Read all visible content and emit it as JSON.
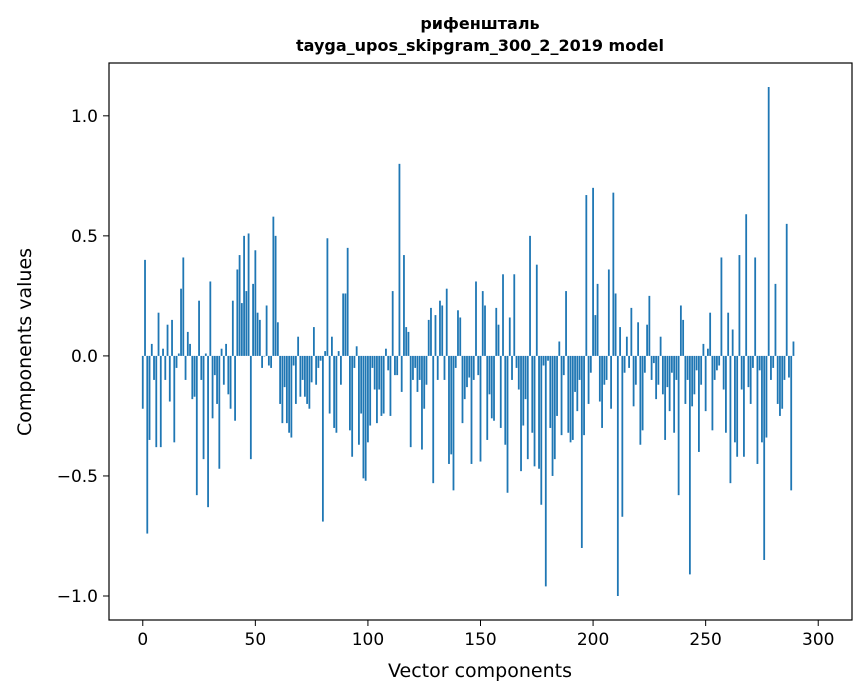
{
  "chart_data": {
    "type": "bar",
    "title": "рифеншталь",
    "subtitle": "tayga_upos_skipgram_300_2_2019 model",
    "xlabel": "Vector components",
    "ylabel": "Components values",
    "xlim": [
      -15,
      315
    ],
    "ylim": [
      -1.1,
      1.22
    ],
    "x_ticks": [
      0,
      50,
      100,
      150,
      200,
      250,
      300
    ],
    "x_tick_labels": [
      "0",
      "50",
      "100",
      "150",
      "200",
      "250",
      "300"
    ],
    "y_ticks": [
      -1.0,
      -0.5,
      0.0,
      0.5,
      1.0
    ],
    "y_tick_labels": [
      "−1.0",
      "−0.5",
      "0.0",
      "0.5",
      "1.0"
    ],
    "bar_color": "#1f77b4",
    "grid": false,
    "values": [
      -0.22,
      0.4,
      -0.74,
      -0.35,
      0.05,
      -0.1,
      -0.38,
      0.18,
      -0.38,
      0.03,
      -0.1,
      0.13,
      -0.19,
      0.15,
      -0.36,
      -0.05,
      0.01,
      0.28,
      0.41,
      -0.1,
      0.1,
      0.05,
      -0.18,
      -0.17,
      -0.58,
      0.23,
      -0.1,
      -0.43,
      0.01,
      -0.63,
      0.31,
      -0.26,
      -0.08,
      -0.2,
      -0.47,
      0.03,
      -0.12,
      0.05,
      -0.16,
      -0.22,
      0.23,
      -0.27,
      0.36,
      0.42,
      0.22,
      0.5,
      0.27,
      0.51,
      -0.43,
      0.3,
      0.44,
      0.18,
      0.15,
      -0.05,
      0.0,
      0.21,
      -0.04,
      -0.05,
      0.58,
      0.5,
      0.14,
      -0.2,
      -0.28,
      -0.13,
      -0.28,
      -0.32,
      -0.34,
      -0.04,
      -0.2,
      0.08,
      -0.17,
      -0.1,
      -0.17,
      -0.2,
      -0.22,
      -0.11,
      0.12,
      -0.12,
      -0.05,
      -0.02,
      -0.69,
      0.02,
      0.49,
      -0.24,
      0.08,
      -0.3,
      -0.32,
      0.02,
      -0.12,
      0.26,
      0.26,
      0.45,
      -0.31,
      -0.42,
      -0.05,
      0.04,
      -0.37,
      -0.24,
      -0.51,
      -0.52,
      -0.36,
      -0.29,
      -0.05,
      -0.14,
      -0.28,
      -0.14,
      -0.25,
      -0.24,
      0.03,
      -0.06,
      -0.25,
      0.27,
      -0.08,
      -0.08,
      0.8,
      -0.15,
      0.42,
      0.12,
      0.1,
      -0.38,
      -0.1,
      -0.05,
      -0.15,
      -0.1,
      -0.39,
      -0.22,
      -0.12,
      0.15,
      0.2,
      -0.53,
      0.17,
      -0.1,
      0.23,
      0.21,
      -0.1,
      0.28,
      -0.45,
      -0.41,
      -0.56,
      -0.05,
      0.19,
      0.16,
      -0.28,
      -0.18,
      -0.13,
      -0.09,
      -0.45,
      -0.1,
      0.31,
      -0.08,
      -0.44,
      0.27,
      0.21,
      -0.35,
      -0.16,
      -0.26,
      -0.27,
      0.2,
      0.13,
      -0.3,
      0.34,
      -0.37,
      -0.57,
      0.16,
      -0.1,
      0.34,
      -0.05,
      -0.14,
      -0.48,
      -0.29,
      -0.18,
      -0.43,
      0.5,
      -0.32,
      -0.46,
      0.38,
      -0.47,
      -0.62,
      -0.04,
      -0.96,
      -0.02,
      -0.3,
      -0.5,
      -0.43,
      -0.25,
      0.06,
      -0.33,
      -0.08,
      0.27,
      -0.32,
      -0.36,
      -0.35,
      -0.15,
      -0.23,
      -0.1,
      -0.8,
      -0.33,
      0.67,
      -0.2,
      -0.07,
      0.7,
      0.17,
      0.3,
      -0.19,
      -0.3,
      -0.12,
      -0.1,
      0.36,
      -0.22,
      0.68,
      0.26,
      -1.0,
      0.12,
      -0.67,
      -0.07,
      0.08,
      -0.05,
      0.2,
      -0.21,
      -0.12,
      0.14,
      -0.37,
      -0.31,
      -0.07,
      0.13,
      0.25,
      -0.1,
      -0.03,
      -0.18,
      -0.12,
      0.08,
      -0.16,
      -0.35,
      -0.13,
      -0.23,
      -0.07,
      -0.32,
      -0.1,
      -0.58,
      0.21,
      0.15,
      -0.2,
      -0.1,
      -0.91,
      -0.21,
      -0.16,
      -0.06,
      -0.4,
      -0.12,
      0.05,
      -0.23,
      0.03,
      0.18,
      -0.31,
      -0.1,
      -0.06,
      -0.04,
      0.41,
      -0.14,
      -0.32,
      0.18,
      -0.53,
      0.11,
      -0.36,
      -0.42,
      0.42,
      -0.14,
      -0.42,
      0.59,
      -0.13,
      -0.2,
      -0.05,
      0.41,
      -0.45,
      -0.06,
      -0.36,
      -0.85,
      -0.34,
      1.12,
      -0.1,
      -0.05,
      0.3,
      -0.2,
      -0.25,
      -0.22,
      -0.1,
      0.55,
      -0.09,
      -0.56,
      0.06
    ]
  }
}
